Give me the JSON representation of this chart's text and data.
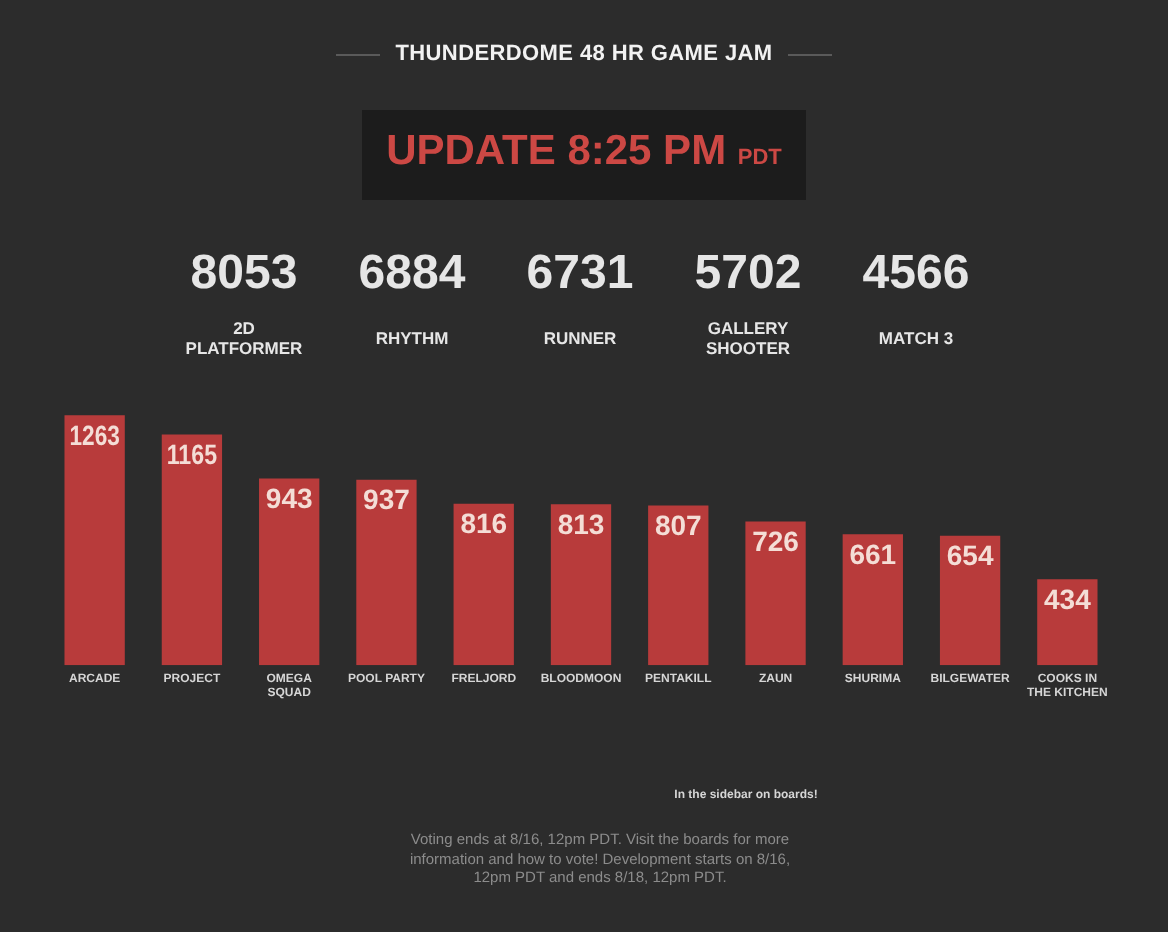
{
  "chart_data": [
    {
      "type": "other",
      "title": "THUNDERDOME 48 HR GAME JAM",
      "subtitle": "UPDATE 8:25 PM PDT",
      "categories": [
        "2D PLATFORMER",
        "RHYTHM",
        "RUNNER",
        "GALLERY SHOOTER",
        "MATCH 3"
      ],
      "values": [
        8053,
        6884,
        6731,
        5702,
        4566
      ],
      "data_labels": true
    },
    {
      "type": "bar",
      "categories": [
        "ARCADE",
        "PROJECT",
        "OMEGA SQUAD",
        "POOL PARTY",
        "FRELJORD",
        "BLOODMOON",
        "PENTAKILL",
        "ZAUN",
        "SHURIMA",
        "BILGEWATER",
        "COOKS IN THE KITCHEN"
      ],
      "values": [
        1263,
        1165,
        943,
        937,
        816,
        813,
        807,
        726,
        661,
        654,
        434
      ],
      "color": "#b83b3b",
      "data_labels": true,
      "annotations": [
        "In the sidebar on boards!",
        "Voting ends at 8/16, 12pm PDT. Visit the boards for more information and how to vote! Development starts on 8/16, 12pm PDT and ends 8/18, 12pm PDT."
      ]
    }
  ]
}
